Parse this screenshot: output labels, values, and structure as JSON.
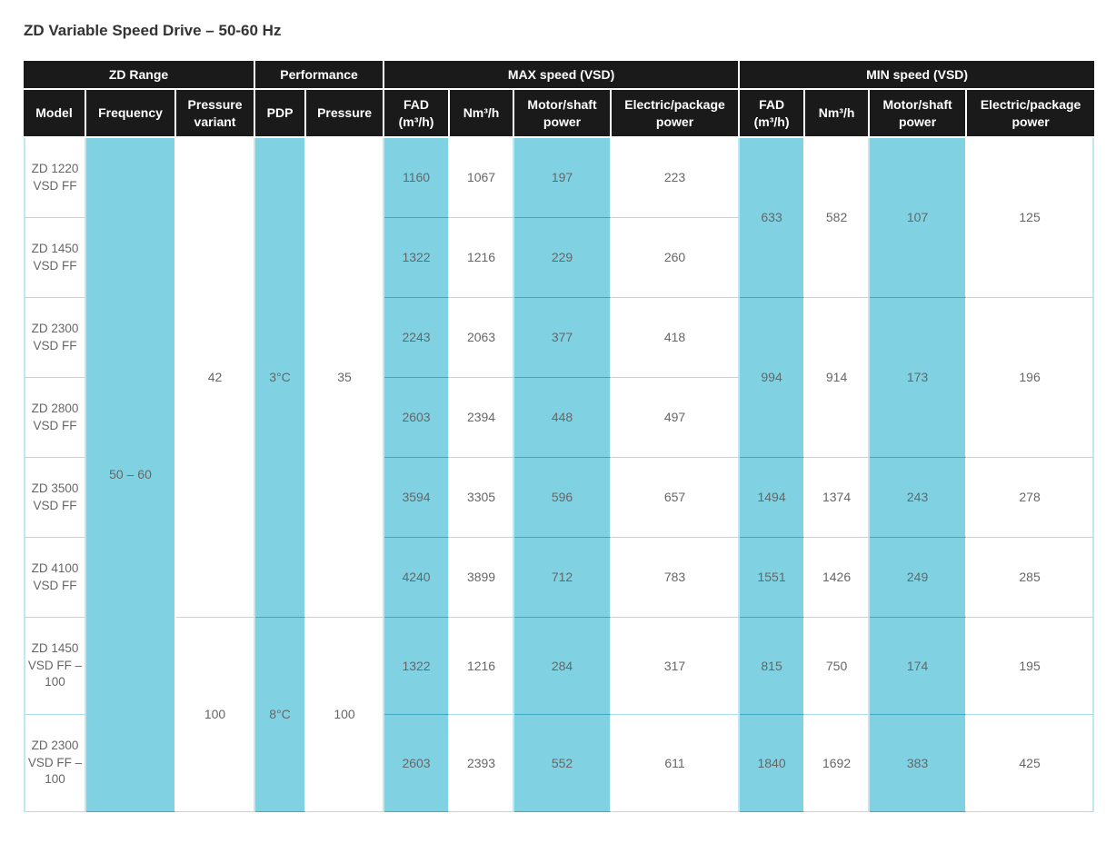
{
  "title": "ZD Variable Speed Drive – 50-60 Hz",
  "header_groups": [
    "ZD Range",
    "Performance",
    "MAX speed (VSD)",
    "MIN speed (VSD)"
  ],
  "columns": {
    "model": "Model",
    "frequency": "Frequency",
    "pressure_variant": "Pressure variant",
    "pdp": "PDP",
    "pressure": "Pressure",
    "max_fad": "FAD (m³/h)",
    "max_nm3h": "Nm³/h",
    "max_motor": "Motor/shaft power",
    "max_electric": "Electric/package power",
    "min_fad": "FAD (m³/h)",
    "min_nm3h": "Nm³/h",
    "min_motor": "Motor/shaft power",
    "min_electric": "Electric/package power"
  },
  "shared": {
    "frequency": "50 – 60",
    "pressure_variant_a": "42",
    "pressure_variant_b": "100",
    "pdp_a": "3°C",
    "pdp_b": "8°C",
    "pressure_a": "35",
    "pressure_b": "100"
  },
  "rows": [
    {
      "model": "ZD 1220 VSD FF",
      "max_fad": "1160",
      "max_nm3h": "1067",
      "max_motor": "197",
      "max_electric": "223"
    },
    {
      "model": "ZD 1450 VSD FF",
      "max_fad": "1322",
      "max_nm3h": "1216",
      "max_motor": "229",
      "max_electric": "260"
    },
    {
      "model": "ZD 2300 VSD FF",
      "max_fad": "2243",
      "max_nm3h": "2063",
      "max_motor": "377",
      "max_electric": "418"
    },
    {
      "model": "ZD 2800 VSD FF",
      "max_fad": "2603",
      "max_nm3h": "2394",
      "max_motor": "448",
      "max_electric": "497"
    },
    {
      "model": "ZD 3500 VSD FF",
      "max_fad": "3594",
      "max_nm3h": "3305",
      "max_motor": "596",
      "max_electric": "657"
    },
    {
      "model": "ZD 4100 VSD FF",
      "max_fad": "4240",
      "max_nm3h": "3899",
      "max_motor": "712",
      "max_electric": "783"
    },
    {
      "model": "ZD 1450 VSD FF – 100",
      "max_fad": "1322",
      "max_nm3h": "1216",
      "max_motor": "284",
      "max_electric": "317"
    },
    {
      "model": "ZD 2300 VSD FF – 100",
      "max_fad": "2603",
      "max_nm3h": "2393",
      "max_motor": "552",
      "max_electric": "611"
    }
  ],
  "min_groups": [
    {
      "fad": "633",
      "nm3h": "582",
      "motor": "107",
      "electric": "125"
    },
    {
      "fad": "994",
      "nm3h": "914",
      "motor": "173",
      "electric": "196"
    },
    {
      "fad": "1494",
      "nm3h": "1374",
      "motor": "243",
      "electric": "278"
    },
    {
      "fad": "1551",
      "nm3h": "1426",
      "motor": "249",
      "electric": "285"
    },
    {
      "fad": "815",
      "nm3h": "750",
      "motor": "174",
      "electric": "195"
    },
    {
      "fad": "1840",
      "nm3h": "1692",
      "motor": "383",
      "electric": "425"
    }
  ],
  "colors": {
    "header_bg": "#1a1a1a",
    "highlight": "#80d2e3",
    "grid": "#bfe8f0",
    "text": "#666666"
  }
}
